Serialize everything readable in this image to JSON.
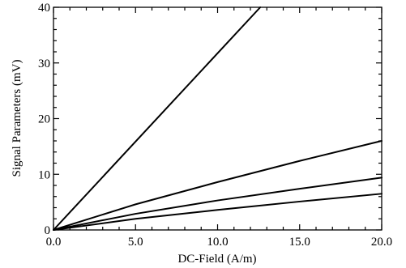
{
  "chart_data": {
    "type": "line",
    "title": "",
    "xlabel": "DC-Field (A/m)",
    "ylabel": "Signal Parameters (mV)",
    "xlim": [
      0,
      20
    ],
    "ylim": [
      0,
      40
    ],
    "x_ticks": [
      0,
      5,
      10,
      15,
      20
    ],
    "x_tick_labels": [
      "0.0",
      "5.0",
      "10.0",
      "15.0",
      "20.0"
    ],
    "y_ticks": [
      0,
      10,
      20,
      30,
      40
    ],
    "y_tick_labels": [
      "0",
      "10",
      "20",
      "30",
      "40"
    ],
    "grid": false,
    "legend": "none",
    "series": [
      {
        "x": [
          0,
          12.6
        ],
        "y": [
          0,
          40
        ]
      },
      {
        "x": [
          0,
          5,
          10,
          15,
          20
        ],
        "y": [
          0,
          4.6,
          8.6,
          12.4,
          16
        ]
      },
      {
        "x": [
          0,
          5,
          10,
          15,
          20
        ],
        "y": [
          0,
          2.9,
          5.3,
          7.4,
          9.4
        ]
      },
      {
        "x": [
          0,
          5,
          10,
          15,
          20
        ],
        "y": [
          0,
          2.0,
          3.6,
          5.1,
          6.5
        ]
      }
    ]
  }
}
